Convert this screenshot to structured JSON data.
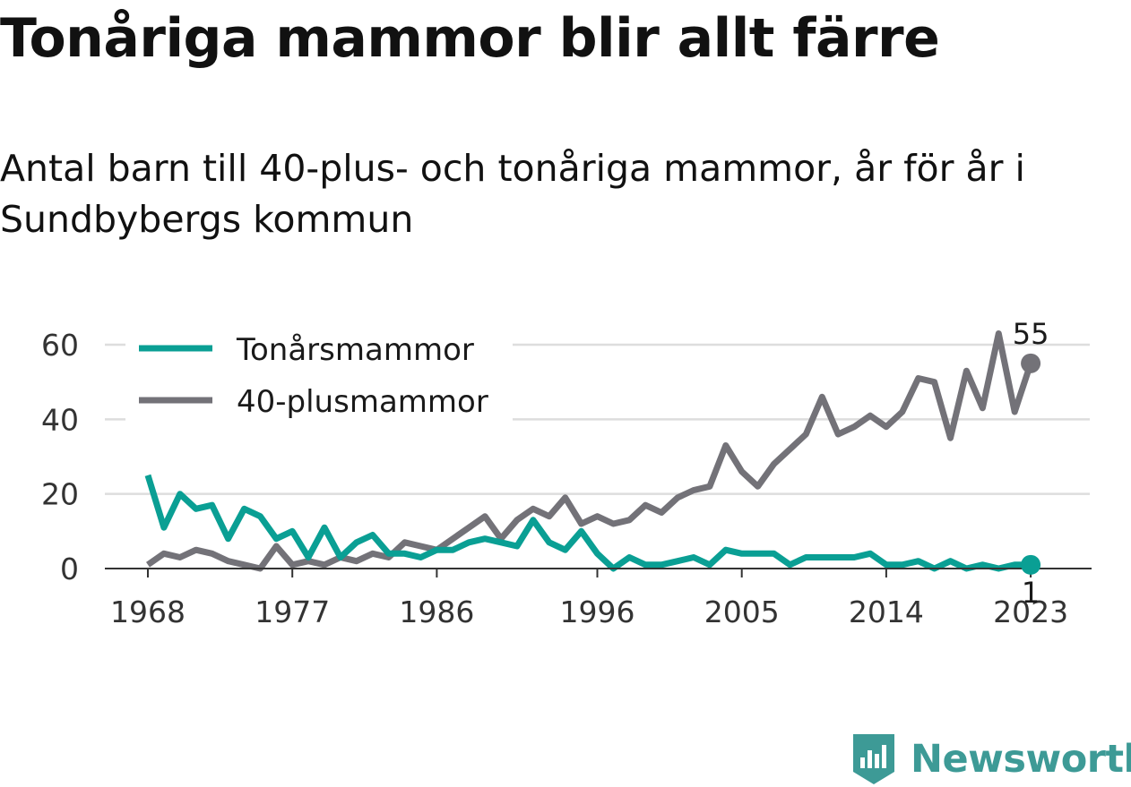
{
  "title": "Tonåriga mammor blir allt färre",
  "subtitle": "Antal barn till 40-plus- och tonåriga mammor, år för år i Sundbybergs kommun",
  "brand": "Newsworthy",
  "colors": {
    "teen": "#0a9f94",
    "forty": "#737278",
    "grid": "#dddddd",
    "axis": "#333333",
    "brand": "#3d9a96"
  },
  "chart_data": {
    "type": "line",
    "x_ticks": [
      1968,
      1977,
      1986,
      1996,
      2005,
      2014,
      2023
    ],
    "y_ticks": [
      0,
      20,
      40,
      60
    ],
    "xlim": [
      1968,
      2024
    ],
    "ylim": [
      0,
      60
    ],
    "grid": true,
    "legend_position": "top-left",
    "series": [
      {
        "name": "Tonårsmammor",
        "color": "#0a9f94",
        "start_year": 1968,
        "values": [
          25,
          11,
          20,
          16,
          17,
          8,
          16,
          14,
          8,
          10,
          3,
          11,
          3,
          7,
          9,
          4,
          4,
          3,
          5,
          5,
          7,
          8,
          7,
          6,
          13,
          7,
          5,
          10,
          4,
          0,
          3,
          1,
          1,
          2,
          3,
          1,
          5,
          4,
          4,
          4,
          1,
          3,
          3,
          3,
          3,
          4,
          1,
          1,
          2,
          0,
          2,
          0,
          1,
          0,
          1,
          1
        ],
        "end_label": "1"
      },
      {
        "name": "40-plusmammor",
        "color": "#737278",
        "start_year": 1968,
        "values": [
          1,
          4,
          3,
          5,
          4,
          2,
          1,
          0,
          6,
          1,
          2,
          1,
          3,
          2,
          4,
          3,
          7,
          6,
          5,
          8,
          11,
          14,
          8,
          13,
          16,
          14,
          19,
          12,
          14,
          12,
          13,
          17,
          15,
          19,
          21,
          22,
          33,
          26,
          22,
          28,
          32,
          36,
          46,
          36,
          38,
          41,
          38,
          42,
          51,
          50,
          35,
          53,
          43,
          63,
          42,
          55
        ],
        "end_label": "55"
      }
    ]
  }
}
